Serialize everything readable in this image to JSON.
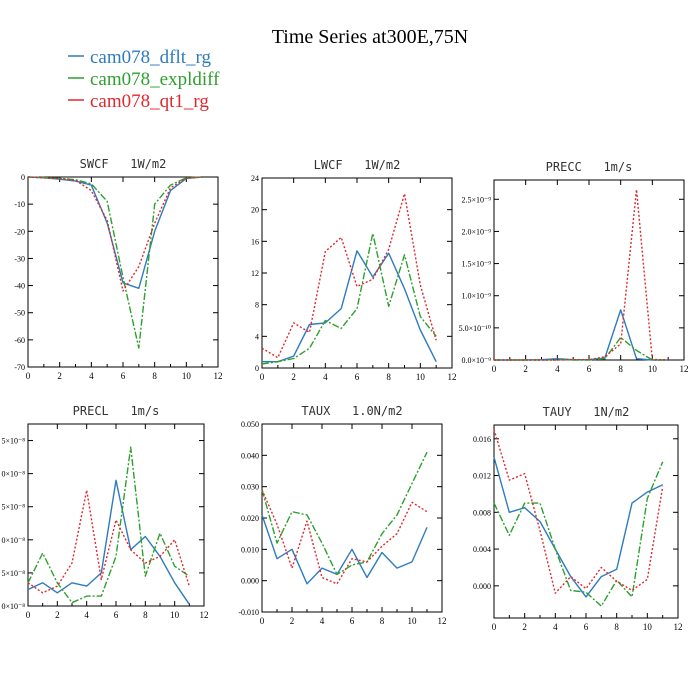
{
  "title": "Time Series at300E,75N",
  "legend": [
    {
      "label": "cam078_dflt_rg",
      "color": "#2e7bbf",
      "dash": "solid"
    },
    {
      "label": "cam078_expldiff",
      "color": "#2ea02e",
      "dash": "dashdot"
    },
    {
      "label": "cam078_qt1_rg",
      "color": "#e0282e",
      "dash": "dotted"
    }
  ],
  "chart_data": [
    {
      "type": "line",
      "title": "SWCF   1W/m2",
      "x": [
        0,
        1,
        2,
        3,
        4,
        5,
        6,
        7,
        8,
        9,
        10,
        11
      ],
      "xlim": [
        0,
        12
      ],
      "xticks": [
        "0",
        "2",
        "4",
        "6",
        "8",
        "10",
        "12"
      ],
      "ylim": [
        -70,
        0
      ],
      "yticks": [
        {
          "v": 0,
          "l": "0"
        },
        {
          "v": -10,
          "l": "-10"
        },
        {
          "v": -20,
          "l": "-20"
        },
        {
          "v": -30,
          "l": "-30"
        },
        {
          "v": -40,
          "l": "-40"
        },
        {
          "v": -50,
          "l": "-50"
        },
        {
          "v": -60,
          "l": "-60"
        },
        {
          "v": -70,
          "l": "-70"
        }
      ],
      "series": [
        {
          "name": "cam078_dflt_rg",
          "values": [
            0,
            -0.3,
            -0.8,
            -1.5,
            -3,
            -17,
            -39,
            -41,
            -20,
            -5,
            -0.5,
            0
          ]
        },
        {
          "name": "cam078_expldiff",
          "values": [
            0,
            -0.2,
            -0.5,
            -1,
            -2.5,
            -9,
            -37,
            -63,
            -10,
            -3,
            -0.3,
            0
          ]
        },
        {
          "name": "cam078_qt1_rg",
          "values": [
            0,
            -0.3,
            -0.6,
            -1.2,
            -5,
            -16,
            -42,
            -33,
            -17,
            -4,
            -0.4,
            0
          ]
        }
      ]
    },
    {
      "type": "line",
      "title": "LWCF   1W/m2",
      "x": [
        0,
        1,
        2,
        3,
        4,
        5,
        6,
        7,
        8,
        9,
        10,
        11
      ],
      "xlim": [
        0,
        12
      ],
      "xticks": [
        "0",
        "2",
        "4",
        "6",
        "8",
        "10",
        "12"
      ],
      "ylim": [
        0,
        24
      ],
      "yticks": [
        {
          "v": 0,
          "l": "0"
        },
        {
          "v": 4,
          "l": "4"
        },
        {
          "v": 8,
          "l": "8"
        },
        {
          "v": 12,
          "l": "12"
        },
        {
          "v": 16,
          "l": "16"
        },
        {
          "v": 20,
          "l": "20"
        },
        {
          "v": 24,
          "l": "24"
        }
      ],
      "series": [
        {
          "name": "cam078_dflt_rg",
          "values": [
            0.8,
            0.8,
            1.5,
            5.5,
            5.7,
            7.5,
            14.8,
            11.5,
            14.5,
            10,
            4.8,
            0.8
          ]
        },
        {
          "name": "cam078_expldiff",
          "values": [
            0.5,
            0.8,
            1.2,
            2.5,
            6,
            5,
            7.5,
            17,
            7.8,
            14.3,
            6.5,
            4
          ]
        },
        {
          "name": "cam078_qt1_rg",
          "values": [
            2.5,
            1.3,
            5.7,
            4.5,
            14.7,
            16.5,
            10.3,
            11.2,
            15,
            22,
            10.5,
            3.5
          ]
        }
      ]
    },
    {
      "type": "line",
      "title": "PRECC   1m/s",
      "x": [
        0,
        1,
        2,
        3,
        4,
        5,
        6,
        7,
        8,
        9,
        10,
        11
      ],
      "xlim": [
        0,
        12
      ],
      "xticks": [
        "0",
        "2",
        "4",
        "6",
        "8",
        "10",
        "12"
      ],
      "ylim": [
        0,
        2.8e-09
      ],
      "yticks": [
        {
          "v": 0,
          "l": "0.0×10⁻⁹"
        },
        {
          "v": 5e-10,
          "l": "5.0×10⁻¹⁰"
        },
        {
          "v": 1e-09,
          "l": "1.0×10⁻⁹"
        },
        {
          "v": 1.5e-09,
          "l": "1.5×10⁻⁹"
        },
        {
          "v": 2e-09,
          "l": "2.0×10⁻⁹"
        },
        {
          "v": 2.5e-09,
          "l": "2.5×10⁻⁹"
        }
      ],
      "series": [
        {
          "name": "cam078_dflt_rg",
          "values": [
            0,
            0,
            0,
            5e-12,
            2e-11,
            5e-12,
            5e-12,
            3e-11,
            7.8e-10,
            2e-11,
            0,
            0
          ]
        },
        {
          "name": "cam078_expldiff",
          "values": [
            0,
            0,
            0,
            0,
            5e-12,
            0,
            0,
            2e-11,
            3.5e-10,
            1.5e-10,
            0,
            0
          ]
        },
        {
          "name": "cam078_qt1_rg",
          "values": [
            0,
            0,
            0,
            0,
            0,
            5e-12,
            5e-12,
            5e-11,
            2.5e-10,
            2.65e-09,
            1e-11,
            0
          ]
        }
      ]
    },
    {
      "type": "line",
      "title": "PRECL   1m/s",
      "x": [
        0,
        1,
        2,
        3,
        4,
        5,
        6,
        7,
        8,
        9,
        10,
        11
      ],
      "xlim": [
        0,
        12
      ],
      "xticks": [
        "0",
        "2",
        "4",
        "6",
        "8",
        "10",
        "12"
      ],
      "ylim": [
        0,
        5.5
      ],
      "yticks": [
        {
          "v": 0,
          "l": "0×10⁻⁸"
        },
        {
          "v": 1,
          "l": "5×10⁻⁸"
        },
        {
          "v": 2,
          "l": "0×10⁻⁸"
        },
        {
          "v": 3,
          "l": "5×10⁻⁸"
        },
        {
          "v": 4,
          "l": "0×10⁻⁸"
        },
        {
          "v": 5,
          "l": "5×10⁻⁸"
        }
      ],
      "series": [
        {
          "name": "cam078_dflt_rg",
          "values": [
            0.5,
            0.7,
            0.4,
            0.7,
            0.6,
            1,
            3.8,
            1.7,
            2.1,
            1.5,
            0.7,
            0.05
          ]
        },
        {
          "name": "cam078_expldiff",
          "values": [
            0.7,
            1.6,
            0.7,
            0.1,
            0.3,
            0.3,
            1.5,
            4.8,
            0.9,
            2.2,
            1.2,
            0.9
          ]
        },
        {
          "name": "cam078_qt1_rg",
          "values": [
            0.7,
            0.4,
            0.6,
            1.3,
            3.5,
            0.8,
            2.6,
            1.7,
            1.3,
            1.5,
            2,
            0.6
          ]
        }
      ]
    },
    {
      "type": "line",
      "title": "TAUX   1.0N/m2",
      "x": [
        0,
        1,
        2,
        3,
        4,
        5,
        6,
        7,
        8,
        9,
        10,
        11
      ],
      "xlim": [
        0,
        12
      ],
      "xticks": [
        "0",
        "2",
        "4",
        "6",
        "8",
        "10",
        "12"
      ],
      "ylim": [
        -0.01,
        0.05
      ],
      "yticks": [
        {
          "v": -0.01,
          "l": "-0.010"
        },
        {
          "v": 0,
          "l": "0.000"
        },
        {
          "v": 0.01,
          "l": "0.010"
        },
        {
          "v": 0.02,
          "l": "0.020"
        },
        {
          "v": 0.03,
          "l": "0.030"
        },
        {
          "v": 0.04,
          "l": "0.040"
        },
        {
          "v": 0.05,
          "l": "0.050"
        }
      ],
      "series": [
        {
          "name": "cam078_dflt_rg",
          "values": [
            0.021,
            0.007,
            0.01,
            -0.001,
            0.004,
            0.002,
            0.01,
            0.001,
            0.009,
            0.004,
            0.006,
            0.017
          ]
        },
        {
          "name": "cam078_expldiff",
          "values": [
            0.029,
            0.012,
            0.022,
            0.021,
            0.012,
            0.002,
            0.005,
            0.006,
            0.015,
            0.021,
            0.031,
            0.041
          ]
        },
        {
          "name": "cam078_qt1_rg",
          "values": [
            0.029,
            0.018,
            0.004,
            0.019,
            0.001,
            -0.001,
            0.007,
            0.006,
            0.011,
            0.015,
            0.025,
            0.022
          ]
        }
      ]
    },
    {
      "type": "line",
      "title": "TAUY   1N/m2",
      "x": [
        0,
        1,
        2,
        3,
        4,
        5,
        6,
        7,
        8,
        9,
        10,
        11
      ],
      "xlim": [
        0,
        12
      ],
      "xticks": [
        "0",
        "2",
        "4",
        "6",
        "8",
        "10",
        "12"
      ],
      "ylim": [
        -0.0035,
        0.0175
      ],
      "yticks": [
        {
          "v": 0,
          "l": "0.000"
        },
        {
          "v": 0.004,
          "l": "0.004"
        },
        {
          "v": 0.008,
          "l": "0.008"
        },
        {
          "v": 0.012,
          "l": "0.012"
        },
        {
          "v": 0.016,
          "l": "0.016"
        }
      ],
      "series": [
        {
          "name": "cam078_dflt_rg",
          "values": [
            0.014,
            0.008,
            0.0085,
            0.007,
            0.004,
            0.001,
            -0.0012,
            0.001,
            0.0018,
            0.009,
            0.0102,
            0.011
          ]
        },
        {
          "name": "cam078_expldiff",
          "values": [
            0.009,
            0.0055,
            0.009,
            0.009,
            0.004,
            -0.0005,
            -0.0007,
            -0.0022,
            0.0006,
            -0.0012,
            0.0095,
            0.0135
          ]
        },
        {
          "name": "cam078_qt1_rg",
          "values": [
            0.017,
            0.0115,
            0.0122,
            0.006,
            -0.0008,
            0.001,
            -0.0003,
            0.002,
            0.0005,
            -0.0005,
            0.0007,
            0.0108
          ]
        }
      ]
    }
  ]
}
